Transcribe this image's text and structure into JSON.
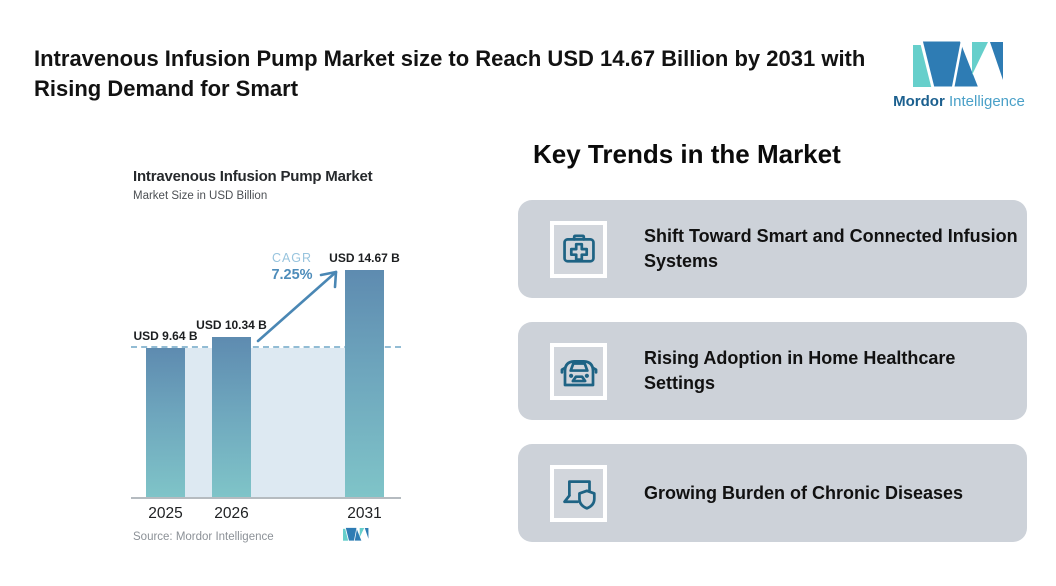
{
  "header": {
    "title": "Intravenous Infusion Pump Market size to Reach USD 14.67 Billion by 2031 with Rising Demand for Smart",
    "brand": {
      "name_bold": "Mordor",
      "name_light": "Intelligence"
    }
  },
  "chart": {
    "title": "Intravenous Infusion Pump Market",
    "subtitle": "Market Size in USD Billion",
    "cagr_label": "CAGR",
    "cagr_value": "7.25%",
    "source": "Source: Mordor Intelligence"
  },
  "chart_data": {
    "type": "bar",
    "title": "Intravenous Infusion Pump Market",
    "ylabel": "Market Size in USD Billion",
    "categories": [
      "2025",
      "2026",
      "2031"
    ],
    "values": [
      9.64,
      10.34,
      14.67
    ],
    "value_labels": [
      "USD 9.64 B",
      "USD 10.34 B",
      "USD 14.67 B"
    ],
    "reference_line": 9.64,
    "annotations": {
      "cagr": "CAGR 7.25%"
    },
    "legend": "none",
    "grid": "off",
    "source": "Source: Mordor Intelligence"
  },
  "trends": {
    "heading": "Key Trends in the Market",
    "cards": [
      {
        "icon": "first-aid-kit-icon",
        "title": "Shift Toward Smart and Connected Infusion Systems"
      },
      {
        "icon": "car-icon",
        "title": "Rising Adoption in Home Healthcare Settings"
      },
      {
        "icon": "laptop-shield-icon",
        "title": "Growing Burden of Chronic Diseases"
      }
    ]
  },
  "colors": {
    "logo_teal": "#66cfcb",
    "logo_blue": "#2e7cb4",
    "bar_top": "#5e8bb0",
    "bar_bottom": "#7fc4c8",
    "plot_background": "#dde9f2",
    "dashed_line": "#92bcd4",
    "card_background": "#cdd2d9",
    "icon_stroke": "#1e6384",
    "arrow_blue": "#4a87b4"
  }
}
